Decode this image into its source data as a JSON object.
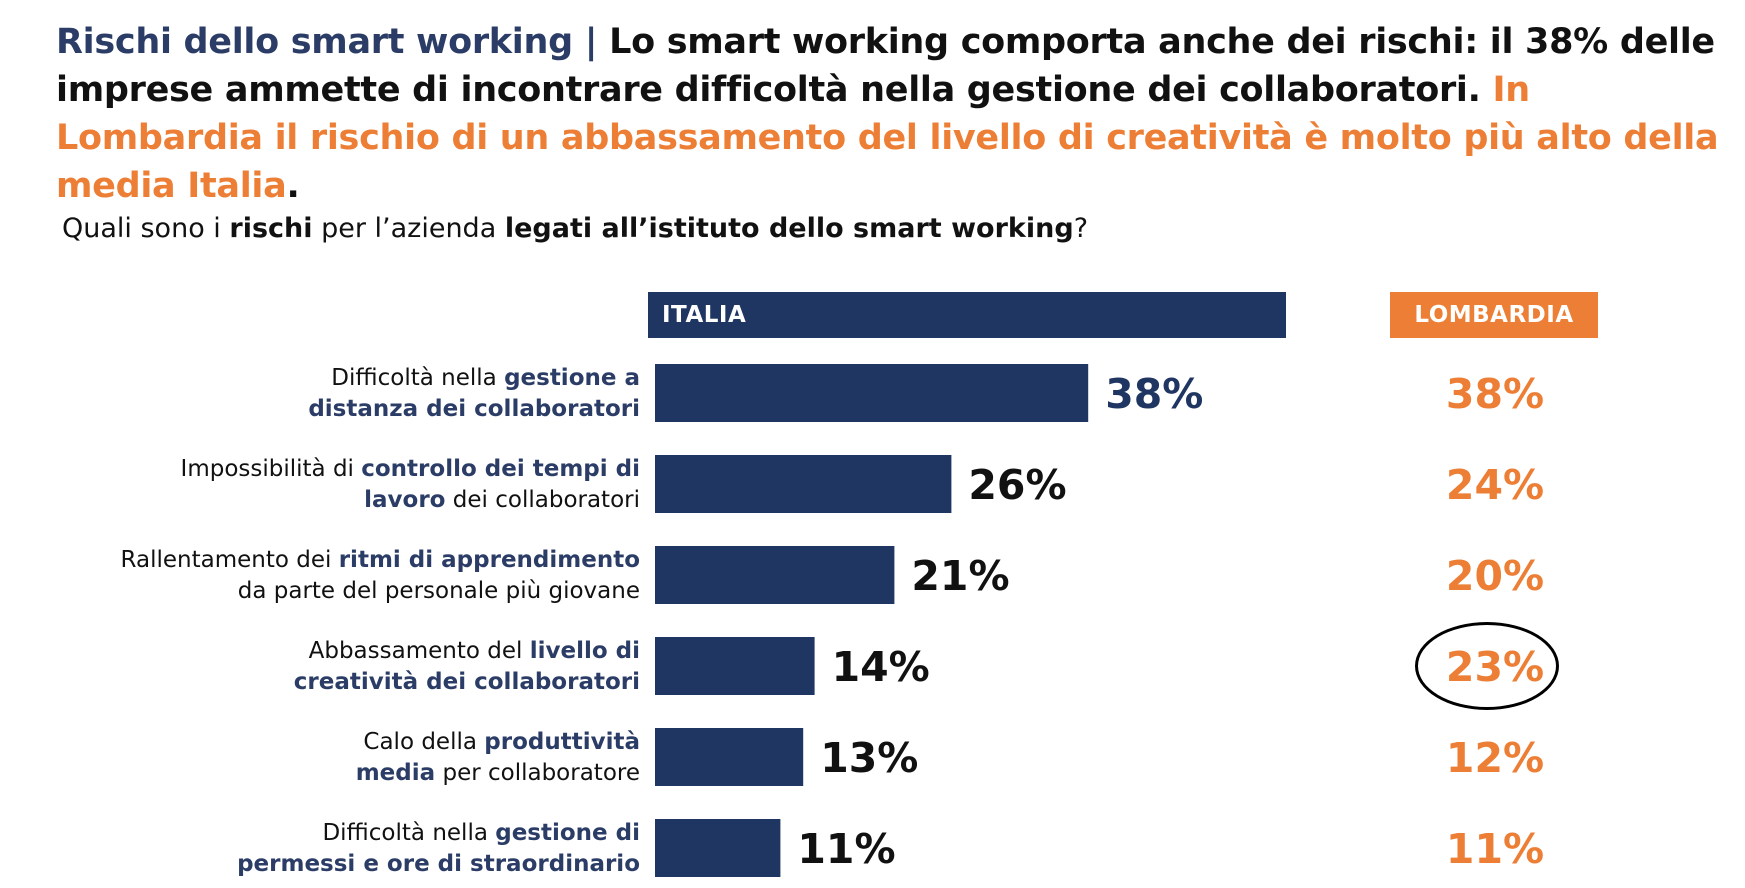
{
  "title": {
    "part1": "Rischi dello smart working",
    "sep": " | ",
    "part2": "Lo smart working comporta anche dei rischi: il 38% delle imprese ammette di incontrare difficoltà nella gestione dei collaboratori.",
    "part3": " In Lombardia il rischio di un abbassamento del livello di creatività è molto più alto della media Italia",
    "end": "."
  },
  "question": {
    "a": "Quali sono i ",
    "b": "rischi",
    "c": " per l’azienda ",
    "d": "legati all’istituto dello smart working",
    "e": "?"
  },
  "headers": {
    "italia": "ITALIA",
    "lombardia": "LOMBARDIA"
  },
  "labels": [
    {
      "l1a": "Difficoltà nella ",
      "l1b": "gestione a",
      "l2a": "distanza dei collaboratori",
      "l2b": ""
    },
    {
      "l1a": "Impossibilità di ",
      "l1b": "controllo dei tempi di",
      "l2a": "lavoro",
      "l2b": " dei collaboratori"
    },
    {
      "l1a": "Rallentamento dei ",
      "l1b": "ritmi di apprendimento",
      "l2a": "",
      "l2b": "da parte del personale più giovane"
    },
    {
      "l1a": "Abbassamento del ",
      "l1b": "livello di",
      "l2a": "creatività dei collaboratori",
      "l2b": ""
    },
    {
      "l1a": "Calo della ",
      "l1b": "produttività",
      "l2a": "media",
      "l2b": " per collaboratore"
    },
    {
      "l1a": "Difficoltà nella ",
      "l1b": "gestione di",
      "l2a": "permessi e ore di straordinario",
      "l2b": ""
    }
  ],
  "chart_data": {
    "type": "bar",
    "orientation": "horizontal",
    "categories": [
      "Difficoltà nella gestione a distanza dei collaboratori",
      "Impossibilità di controllo dei tempi di lavoro dei collaboratori",
      "Rallentamento dei ritmi di apprendimento da parte del personale più giovane",
      "Abbassamento del livello di creatività dei collaboratori",
      "Calo della produttività media per collaboratore",
      "Difficoltà nella gestione di permessi e ore di straordinario"
    ],
    "series": [
      {
        "name": "ITALIA",
        "values": [
          38,
          26,
          21,
          14,
          13,
          11
        ],
        "color": "#1f3562"
      },
      {
        "name": "LOMBARDIA",
        "values": [
          38,
          24,
          20,
          23,
          12,
          11
        ],
        "color": "#ec7f35"
      }
    ],
    "value_suffix": "%",
    "highlighted_category_index": 3
  },
  "colors": {
    "navy": "#1f3562",
    "orange": "#ec7f35",
    "text": "#111111"
  }
}
